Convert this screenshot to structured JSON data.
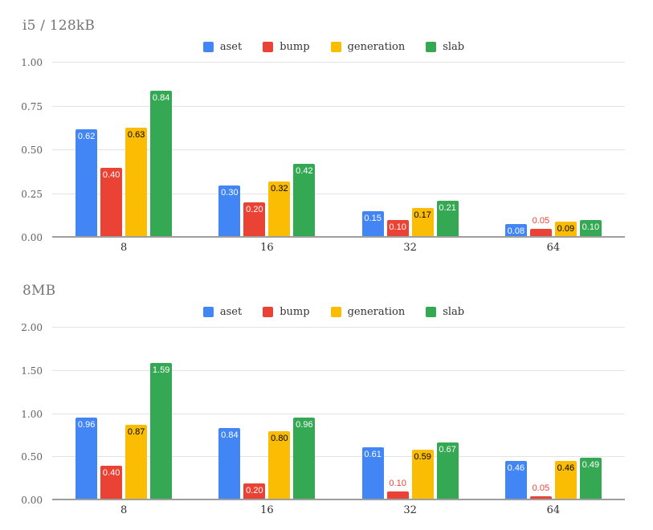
{
  "chart_data": [
    {
      "type": "bar",
      "title": "i5 / 128kB",
      "categories": [
        "8",
        "16",
        "32",
        "64"
      ],
      "series": [
        {
          "name": "aset",
          "color": "#4285f4",
          "label_text_color": "#ffffff",
          "values": [
            0.62,
            0.3,
            0.15,
            0.08
          ]
        },
        {
          "name": "bump",
          "color": "#ea4335",
          "label_text_color": "#ffffff",
          "values": [
            0.4,
            0.2,
            0.1,
            0.05
          ]
        },
        {
          "name": "generation",
          "color": "#fbbc04",
          "label_text_color": "#000000",
          "values": [
            0.63,
            0.32,
            0.17,
            0.09
          ]
        },
        {
          "name": "slab",
          "color": "#34a853",
          "label_text_color": "#ffffff",
          "values": [
            0.84,
            0.42,
            0.21,
            0.1
          ]
        }
      ],
      "y_ticks": [
        "1.00",
        "0.75",
        "0.50",
        "0.25",
        "0.00"
      ],
      "ylim": [
        0,
        1
      ],
      "xlabel": "",
      "ylabel": "",
      "grid": true,
      "legend_position": "top",
      "legend": [
        "aset",
        "bump",
        "generation",
        "slab"
      ]
    },
    {
      "type": "bar",
      "title": "8MB",
      "categories": [
        "8",
        "16",
        "32",
        "64"
      ],
      "series": [
        {
          "name": "aset",
          "color": "#4285f4",
          "label_text_color": "#ffffff",
          "values": [
            0.96,
            0.84,
            0.61,
            0.46
          ]
        },
        {
          "name": "bump",
          "color": "#ea4335",
          "label_text_color": "#ffffff",
          "values": [
            0.4,
            0.2,
            0.1,
            0.05
          ]
        },
        {
          "name": "generation",
          "color": "#fbbc04",
          "label_text_color": "#000000",
          "values": [
            0.87,
            0.8,
            0.59,
            0.46
          ]
        },
        {
          "name": "slab",
          "color": "#34a853",
          "label_text_color": "#ffffff",
          "values": [
            1.59,
            0.96,
            0.67,
            0.49
          ]
        }
      ],
      "y_ticks": [
        "2.00",
        "1.50",
        "1.00",
        "0.50",
        "0.00"
      ],
      "ylim": [
        0,
        2
      ],
      "xlabel": "",
      "ylabel": "",
      "grid": true,
      "legend_position": "top",
      "legend": [
        "aset",
        "bump",
        "generation",
        "slab"
      ]
    }
  ]
}
